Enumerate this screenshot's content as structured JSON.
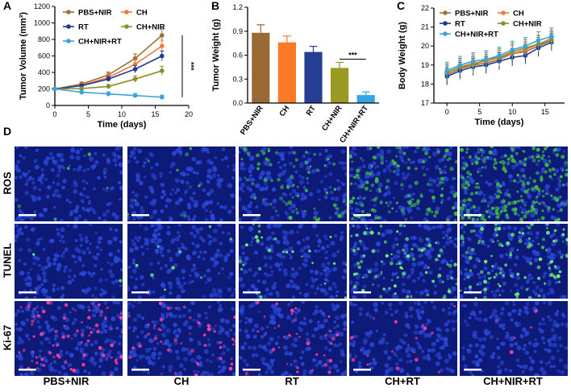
{
  "panels": {
    "A": "A",
    "B": "B",
    "C": "C",
    "D": "D"
  },
  "colors": {
    "pbs_nir": "#9c7236",
    "ch": "#f07b3a",
    "rt": "#1f3b8f",
    "ch_nir": "#8c8c2a",
    "ch_nir_rt": "#3aa3dc",
    "bar_pbs": "#9a6a35",
    "bar_ch": "#fb7a28",
    "bar_rt": "#253f93",
    "bar_chnir": "#9a9a22",
    "bar_chnirrt": "#35a4e3",
    "micro_bg": "#0d1a78",
    "nuclei": "#2b47d8",
    "ros": "#3fb84a",
    "tunel": "#6cf07a",
    "ki67": "#ff3fa0"
  },
  "chart_data": [
    {
      "id": "A",
      "type": "line",
      "xlabel": "Time (days)",
      "ylabel": "Tumor Volume (mm³)",
      "xlim": [
        0,
        20
      ],
      "ylim": [
        0,
        1200
      ],
      "xticks": [
        0,
        5,
        10,
        15,
        20
      ],
      "yticks": [
        0,
        200,
        400,
        600,
        800,
        1000,
        1200
      ],
      "x": [
        0,
        4,
        8,
        12,
        16
      ],
      "series": [
        {
          "name": "PBS+NIR",
          "color": "#9c7236",
          "values": [
            200,
            260,
            370,
            570,
            850
          ],
          "err": [
            15,
            25,
            35,
            55,
            80
          ]
        },
        {
          "name": "CH",
          "color": "#f07b3a",
          "values": [
            200,
            245,
            340,
            500,
            720
          ],
          "err": [
            15,
            25,
            35,
            50,
            70
          ]
        },
        {
          "name": "RT",
          "color": "#1f3b8f",
          "values": [
            200,
            240,
            320,
            440,
            600
          ],
          "err": [
            15,
            20,
            30,
            45,
            60
          ]
        },
        {
          "name": "CH+NIR",
          "color": "#8c8c2a",
          "values": [
            200,
            205,
            230,
            320,
            420
          ],
          "err": [
            15,
            20,
            25,
            40,
            55
          ]
        },
        {
          "name": "CH+NIR+RT",
          "color": "#3aa3dc",
          "values": [
            200,
            160,
            140,
            120,
            100
          ],
          "err": [
            15,
            25,
            25,
            25,
            25
          ]
        }
      ],
      "annotation": "***",
      "legend": "top-left"
    },
    {
      "id": "B",
      "type": "bar",
      "ylabel": "Tumor Weight (g)",
      "ylim": [
        0,
        1.2
      ],
      "yticks": [
        0.0,
        0.3,
        0.6,
        0.9,
        1.2
      ],
      "categories": [
        "PBS+NIR",
        "CH",
        "RT",
        "CH+NIR",
        "CH+NIR+RT"
      ],
      "values": [
        0.88,
        0.76,
        0.64,
        0.44,
        0.1
      ],
      "err": [
        0.1,
        0.08,
        0.07,
        0.07,
        0.04
      ],
      "colors": [
        "#9a6a35",
        "#fb7a28",
        "#253f93",
        "#9a9a22",
        "#35a4e3"
      ],
      "annotation": "***"
    },
    {
      "id": "C",
      "type": "line",
      "xlabel": "Time (days)",
      "ylabel": "Body Weight (g)",
      "xlim": [
        -2,
        18
      ],
      "ylim": [
        17,
        22
      ],
      "xticks": [
        0,
        5,
        10,
        15
      ],
      "yticks": [
        17,
        18,
        19,
        20,
        21,
        22
      ],
      "x": [
        0,
        2,
        4,
        6,
        8,
        10,
        12,
        14,
        16
      ],
      "series": [
        {
          "name": "PBS+NIR",
          "color": "#9c7236",
          "values": [
            18.5,
            18.8,
            19.0,
            19.1,
            19.3,
            19.6,
            19.7,
            20.0,
            20.3
          ]
        },
        {
          "name": "CH",
          "color": "#f07b3a",
          "values": [
            18.6,
            18.9,
            19.1,
            19.2,
            19.4,
            19.6,
            19.8,
            20.1,
            20.4
          ]
        },
        {
          "name": "RT",
          "color": "#1f3b8f",
          "values": [
            18.4,
            18.7,
            18.9,
            19.0,
            19.2,
            19.4,
            19.5,
            19.9,
            20.2
          ]
        },
        {
          "name": "CH+NIR",
          "color": "#8c8c2a",
          "values": [
            18.6,
            18.9,
            19.0,
            19.3,
            19.4,
            19.7,
            19.9,
            20.1,
            20.3
          ]
        },
        {
          "name": "CH+NIR+RT",
          "color": "#3aa3dc",
          "values": [
            18.7,
            19.0,
            19.2,
            19.3,
            19.5,
            19.8,
            20.0,
            20.3,
            20.5
          ]
        }
      ],
      "err": 0.45,
      "legend": "top"
    }
  ],
  "panel_d": {
    "rows": [
      "ROS",
      "TUNEL",
      "Ki-67"
    ],
    "cols": [
      "PBS+NIR",
      "CH",
      "RT",
      "CH+RT",
      "CH+NIR+RT"
    ],
    "signal": [
      [
        0.02,
        0.03,
        0.25,
        0.45,
        0.85
      ],
      [
        0.01,
        0.05,
        0.15,
        0.45,
        0.6
      ],
      [
        0.4,
        0.25,
        0.2,
        0.1,
        0.03
      ]
    ]
  }
}
